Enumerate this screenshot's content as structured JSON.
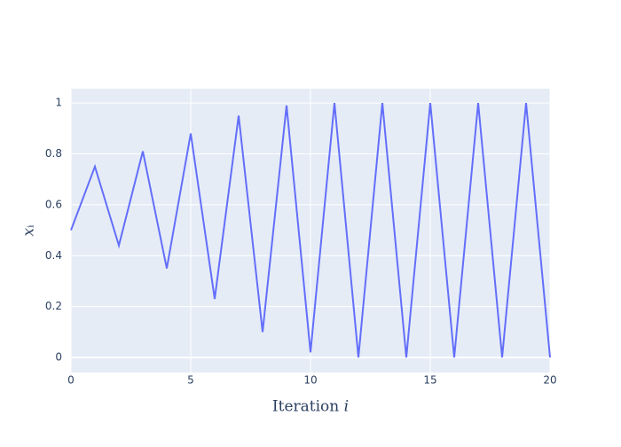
{
  "chart_data": {
    "type": "line",
    "xlabel": "Iteration 𝑖",
    "ylabel": "𝑥ᵢ",
    "x": [
      0,
      1,
      2,
      3,
      4,
      5,
      6,
      7,
      8,
      9,
      10,
      11,
      12,
      13,
      14,
      15,
      16,
      17,
      18,
      19,
      20
    ],
    "series": [
      {
        "name": "x",
        "color": "#636efa",
        "values": [
          0.5,
          0.75,
          0.44,
          0.81,
          0.35,
          0.88,
          0.23,
          0.95,
          0.1,
          0.99,
          0.02,
          1,
          0,
          1,
          0,
          1,
          0,
          1,
          0,
          1,
          0
        ]
      }
    ],
    "xlim": [
      0,
      20
    ],
    "xticks": [
      0,
      5,
      10,
      15,
      20
    ],
    "ylim": [
      -0.059,
      1.056
    ],
    "yticks": [
      0,
      0.2,
      0.4,
      0.6,
      0.8,
      1
    ],
    "grid": true
  }
}
